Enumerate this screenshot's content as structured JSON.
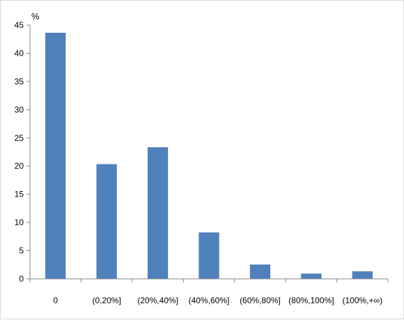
{
  "chart_data": {
    "type": "bar",
    "title": "",
    "xlabel": "",
    "ylabel": "%",
    "ylim": [
      0,
      45
    ],
    "yticks": [
      0,
      5,
      10,
      15,
      20,
      25,
      30,
      35,
      40,
      45
    ],
    "grid": false,
    "legend": "none",
    "categories": [
      "0",
      "(0,20%]",
      "(20%,40%]",
      "(40%,60%]",
      "(60%,80%]",
      "(80%,100%]",
      "(100%,+∞)"
    ],
    "values": [
      43.6,
      20.3,
      23.3,
      8.2,
      2.5,
      0.9,
      1.3
    ],
    "bar_color": "#4f81bd"
  }
}
